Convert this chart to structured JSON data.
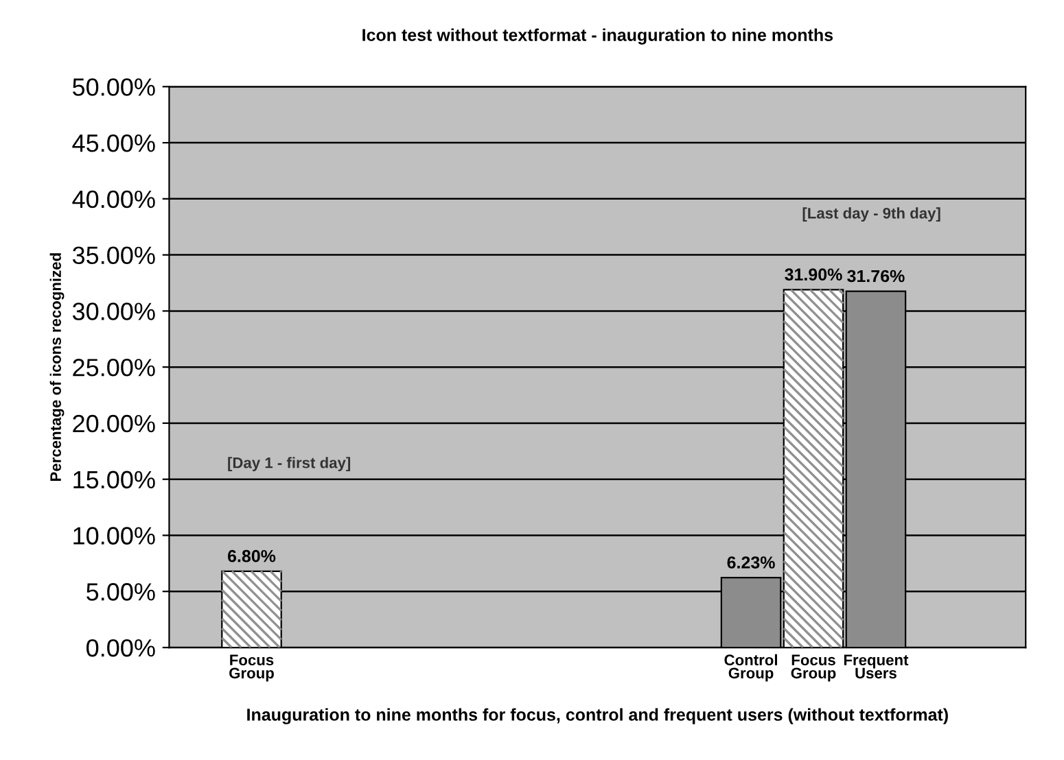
{
  "chart_data": {
    "type": "bar",
    "title": "Icon test without textformat - inauguration to nine months",
    "xlabel": "Inauguration to nine months for focus, control and frequent users (without textformat)",
    "ylabel": "Percentage of icons recognized",
    "categories": [
      "Focus\nGroup",
      null,
      null,
      null,
      null,
      null,
      null,
      null,
      "Control\nGroup",
      "Focus\nGroup",
      "Frequent\nUsers"
    ],
    "values": [
      6.8,
      null,
      null,
      null,
      null,
      null,
      null,
      null,
      6.23,
      31.9,
      31.76
    ],
    "value_labels": [
      "6.80%",
      null,
      null,
      null,
      null,
      null,
      null,
      null,
      "6.23%",
      "31.90%",
      "31.76%"
    ],
    "colors": [
      "#ffffff",
      null,
      null,
      null,
      null,
      null,
      null,
      null,
      "#8c8c8c",
      "#ffffff",
      "#8c8c8c"
    ],
    "ylim": [
      0,
      50
    ],
    "yticks": [
      {
        "value": 0,
        "label": "0.00%"
      },
      {
        "value": 5,
        "label": "5.00%"
      },
      {
        "value": 10,
        "label": "10.00%"
      },
      {
        "value": 15,
        "label": "15.00%"
      },
      {
        "value": 20,
        "label": "20.00%"
      },
      {
        "value": 25,
        "label": "25.00%"
      },
      {
        "value": 30,
        "label": "30.00%"
      },
      {
        "value": 35,
        "label": "35.00%"
      },
      {
        "value": 40,
        "label": "40.00%"
      },
      {
        "value": 45,
        "label": "45.00%"
      },
      {
        "value": 50,
        "label": "50.00%"
      }
    ],
    "grid": "y",
    "annotations": [
      "[Day 1 - first day]",
      "[Last day - 9th day]"
    ]
  }
}
